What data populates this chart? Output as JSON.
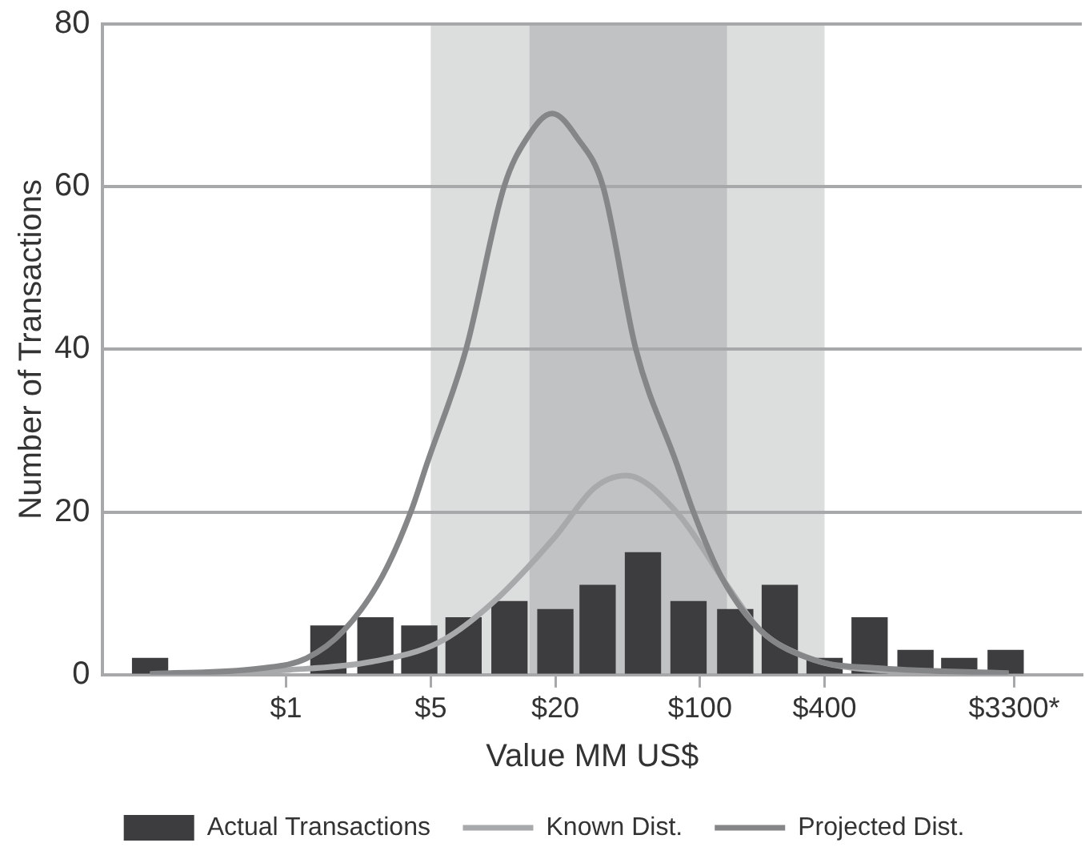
{
  "chart_data": {
    "type": "bar",
    "xlabel": "Value MM US$",
    "ylabel": "Number of Transactions",
    "log": "x",
    "xlim": [
      0.13,
      7000
    ],
    "xticks": [
      {
        "value": 1,
        "label": "$1"
      },
      {
        "value": 5,
        "label": "$5"
      },
      {
        "value": 20,
        "label": "$20"
      },
      {
        "value": 100,
        "label": "$100"
      },
      {
        "value": 400,
        "label": "$400"
      },
      {
        "value": 3300,
        "label": "$3300*"
      }
    ],
    "ylim": [
      0,
      80
    ],
    "yticks": [
      0,
      20,
      40,
      60,
      80
    ],
    "grid": "y",
    "legend": "bottom",
    "bands": [
      {
        "axis": "x",
        "from": 5,
        "to": 400,
        "color": "#dcdddd"
      },
      {
        "axis": "x",
        "from": 15,
        "to": 135,
        "color": "#c1c2c4"
      }
    ],
    "series": [
      {
        "name": "Actual Transactions",
        "color": "#3d3d3f",
        "x": [
          0.22,
          0.96,
          1.6,
          2.7,
          4.4,
          7.2,
          12,
          20,
          32,
          53,
          88,
          148,
          243,
          400,
          660,
          1100,
          1790,
          3000
        ],
        "values": [
          2,
          null,
          6,
          7,
          6,
          7,
          9,
          8,
          11,
          15,
          9,
          8,
          11,
          2,
          7,
          3,
          2,
          3
        ]
      },
      {
        "name": "Known Dist.",
        "type": "line",
        "color": "#a8a9ab",
        "x": [
          0.22,
          1.04,
          2.6,
          5.5,
          10.1,
          20,
          31,
          44,
          77,
          135,
          195,
          340,
          560,
          3100
        ],
        "values": [
          0,
          0.6,
          1.6,
          4,
          9,
          17,
          23,
          24.5,
          20,
          11,
          5.5,
          2,
          0.8,
          0.1
        ]
      },
      {
        "name": "Projected Dist.",
        "type": "line",
        "color": "#858688",
        "x": [
          0.22,
          0.76,
          1.25,
          1.91,
          2.9,
          4,
          4.8,
          7.4,
          11.3,
          14.6,
          19.3,
          25.5,
          34,
          49,
          77,
          93,
          127,
          195,
          358,
          750,
          3100
        ],
        "values": [
          0.1,
          0.8,
          2,
          5.5,
          12,
          20,
          26,
          40,
          60,
          66,
          69,
          66,
          60,
          40,
          26,
          20,
          12,
          5.5,
          1.8,
          0.8,
          0.2
        ]
      }
    ]
  }
}
